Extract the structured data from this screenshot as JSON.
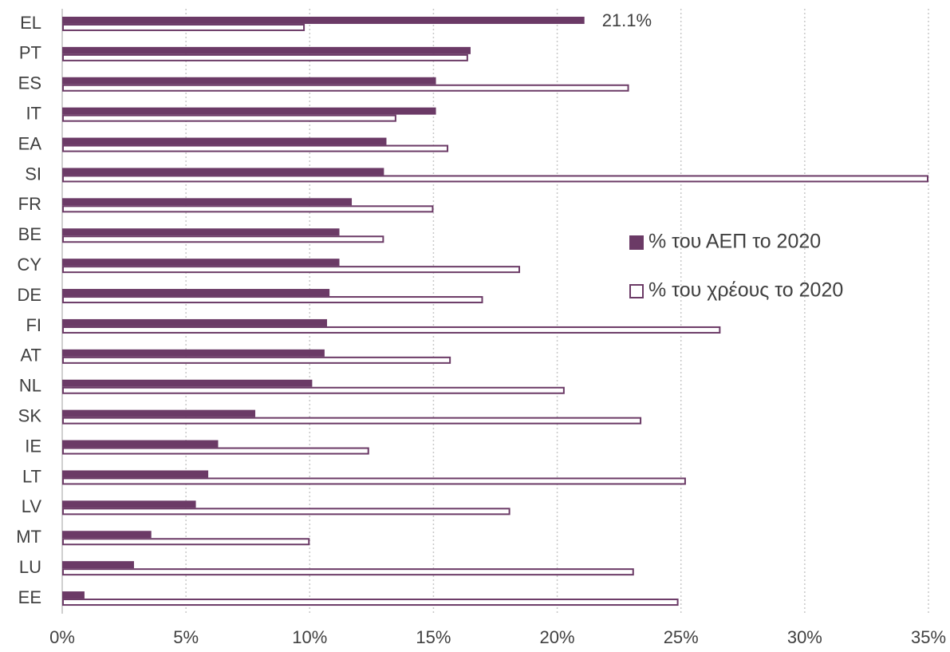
{
  "chart_data": {
    "type": "bar",
    "orientation": "horizontal",
    "categories": [
      "EL",
      "PT",
      "ES",
      "IT",
      "EA",
      "SI",
      "FR",
      "BE",
      "CY",
      "DE",
      "FI",
      "AT",
      "NL",
      "SK",
      "IE",
      "LT",
      "LV",
      "MT",
      "LU",
      "EE"
    ],
    "series": [
      {
        "name": "% του ΑΕΠ το 2020",
        "color": "#6b3a66",
        "style": "filled",
        "values": [
          21.1,
          16.5,
          15.1,
          15.1,
          13.1,
          13.0,
          11.7,
          11.2,
          11.2,
          10.8,
          10.7,
          10.6,
          10.1,
          7.8,
          6.3,
          5.9,
          5.4,
          3.6,
          2.9,
          0.9
        ],
        "value_labels": [
          "21.1%",
          null,
          null,
          null,
          null,
          null,
          null,
          null,
          null,
          null,
          null,
          null,
          null,
          null,
          null,
          null,
          null,
          null,
          null,
          null
        ]
      },
      {
        "name": "% του χρέους το 2020",
        "color": "#6b3a66",
        "style": "outline",
        "values": [
          9.8,
          16.4,
          22.9,
          13.5,
          15.6,
          35,
          15.0,
          13.0,
          18.5,
          17.0,
          26.6,
          15.7,
          20.3,
          23.4,
          12.4,
          25.2,
          18.1,
          10.0,
          23.1,
          24.9
        ]
      }
    ],
    "xlim": [
      0,
      35
    ],
    "xticks": [
      {
        "value": 0,
        "label": "0%"
      },
      {
        "value": 5,
        "label": "5%"
      },
      {
        "value": 10,
        "label": "10%"
      },
      {
        "value": 15,
        "label": "15%"
      },
      {
        "value": 20,
        "label": "20%"
      },
      {
        "value": 25,
        "label": "25%"
      },
      {
        "value": 30,
        "label": "30%"
      },
      {
        "value": 35,
        "label": "35%"
      }
    ],
    "grid": true,
    "legend": "right"
  }
}
